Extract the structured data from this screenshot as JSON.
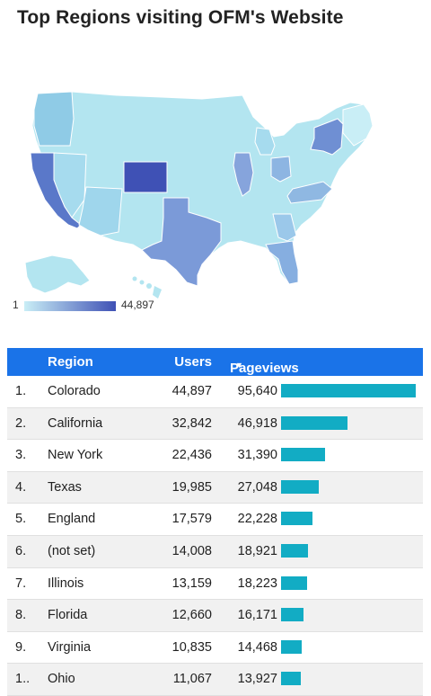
{
  "title": "Top Regions visiting OFM's Website",
  "legend": {
    "min": "1",
    "max": "44,897",
    "min_color": "#c9eef6",
    "max_color": "#3f51b5"
  },
  "table": {
    "headers": {
      "region": "Region",
      "users": "Users",
      "pageviews": "Pageviews"
    },
    "sort_icon": "sort-down-icon",
    "header_color": "#1a73e8",
    "bar_color": "#12acc4",
    "rows": [
      {
        "rank": "1.",
        "region": "Colorado",
        "users": "44,897",
        "pageviews": "95,640"
      },
      {
        "rank": "2.",
        "region": "California",
        "users": "32,842",
        "pageviews": "46,918"
      },
      {
        "rank": "3.",
        "region": "New York",
        "users": "22,436",
        "pageviews": "31,390"
      },
      {
        "rank": "4.",
        "region": "Texas",
        "users": "19,985",
        "pageviews": "27,048"
      },
      {
        "rank": "5.",
        "region": "England",
        "users": "17,579",
        "pageviews": "22,228"
      },
      {
        "rank": "6.",
        "region": "(not set)",
        "users": "14,008",
        "pageviews": "18,921"
      },
      {
        "rank": "7.",
        "region": "Illinois",
        "users": "13,159",
        "pageviews": "18,223"
      },
      {
        "rank": "8.",
        "region": "Florida",
        "users": "12,660",
        "pageviews": "16,171"
      },
      {
        "rank": "9.",
        "region": "Virginia",
        "users": "10,835",
        "pageviews": "14,468"
      },
      {
        "rank": "1...",
        "region": "Ohio",
        "users": "11,067",
        "pageviews": "13,927"
      }
    ]
  },
  "chart_data": [
    {
      "type": "heatmap",
      "title": "Top Regions visiting OFM's Website",
      "color_range": [
        1,
        44897
      ],
      "regions": [
        {
          "name": "Colorado",
          "value": 44897
        },
        {
          "name": "California",
          "value": 32842
        },
        {
          "name": "New York",
          "value": 22436
        },
        {
          "name": "Texas",
          "value": 19985
        },
        {
          "name": "Illinois",
          "value": 13159
        },
        {
          "name": "Florida",
          "value": 12660
        },
        {
          "name": "Virginia",
          "value": 10835
        },
        {
          "name": "Ohio",
          "value": 11067
        }
      ]
    },
    {
      "type": "bar",
      "categories": [
        "Colorado",
        "California",
        "New York",
        "Texas",
        "England",
        "(not set)",
        "Illinois",
        "Florida",
        "Virginia",
        "Ohio"
      ],
      "series": [
        {
          "name": "Pageviews",
          "values": [
            95640,
            46918,
            31390,
            27048,
            22228,
            18921,
            18223,
            16171,
            14468,
            13927
          ]
        }
      ],
      "xlim": [
        0,
        95640
      ]
    }
  ]
}
